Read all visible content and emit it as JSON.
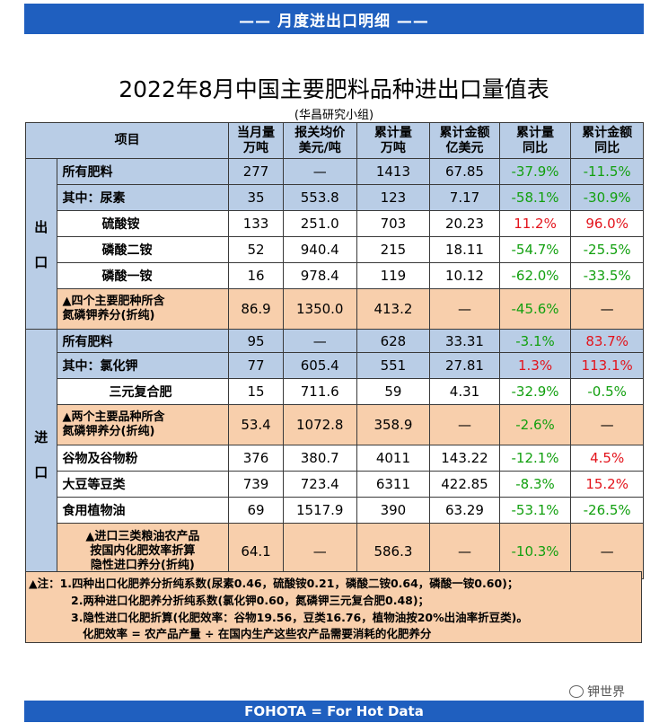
{
  "header": {
    "banner": "—— 月度进出口明细 ——"
  },
  "title": "2022年8月中国主要肥料品种进出口量值表",
  "subtitle": "(华昌研究小组)",
  "table": {
    "col_item": "项目",
    "columns": [
      [
        "当月量",
        "万吨"
      ],
      [
        "报关均价",
        "美元/吨"
      ],
      [
        "累计量",
        "万吨"
      ],
      [
        "累计金额",
        "亿美元"
      ],
      [
        "累计量",
        "同比"
      ],
      [
        "累计金额",
        "同比"
      ]
    ],
    "export_label": [
      "出",
      "口"
    ],
    "import_label": [
      "进",
      "口"
    ],
    "export_rows": [
      {
        "item": [
          "所有肥料"
        ],
        "vals": [
          "277",
          "—",
          "1413",
          "67.85",
          "-37.9%",
          "-11.5%"
        ]
      },
      {
        "item": [
          "其中：尿素"
        ],
        "vals": [
          "35",
          "553.8",
          "123",
          "7.17",
          "-58.1%",
          "-30.9%"
        ]
      },
      {
        "item": [
          "硫酸铵"
        ],
        "vals": [
          "133",
          "251.0",
          "703",
          "20.23",
          "11.2%",
          "96.0%"
        ]
      },
      {
        "item": [
          "磷酸二铵"
        ],
        "vals": [
          "52",
          "940.4",
          "215",
          "18.11",
          "-54.7%",
          "-25.5%"
        ]
      },
      {
        "item": [
          "磷酸一铵"
        ],
        "vals": [
          "16",
          "978.4",
          "119",
          "10.12",
          "-62.0%",
          "-33.5%"
        ]
      },
      {
        "item": [
          "▲四个主要肥种所含",
          "氮磷钾养分(折纯)"
        ],
        "vals": [
          "86.9",
          "1350.0",
          "413.2",
          "—",
          "-45.6%",
          "—"
        ]
      }
    ],
    "import_rows": [
      {
        "item": [
          "所有肥料"
        ],
        "vals": [
          "95",
          "—",
          "628",
          "33.31",
          "-3.1%",
          "83.7%"
        ]
      },
      {
        "item": [
          "其中：氯化钾"
        ],
        "vals": [
          "77",
          "605.4",
          "551",
          "27.81",
          "1.3%",
          "113.1%"
        ]
      },
      {
        "item": [
          "三元复合肥"
        ],
        "vals": [
          "15",
          "711.6",
          "59",
          "4.31",
          "-32.9%",
          "-0.5%"
        ]
      },
      {
        "item": [
          "▲两个主要品种所含",
          "氮磷钾养分(折纯)"
        ],
        "vals": [
          "53.4",
          "1072.8",
          "358.9",
          "—",
          "-2.6%",
          "—"
        ]
      },
      {
        "item": [
          "谷物及谷物粉"
        ],
        "vals": [
          "376",
          "380.7",
          "4011",
          "143.22",
          "-12.1%",
          "4.5%"
        ]
      },
      {
        "item": [
          "大豆等豆类"
        ],
        "vals": [
          "739",
          "723.4",
          "6311",
          "422.85",
          "-8.3%",
          "15.2%"
        ]
      },
      {
        "item": [
          "食用植物油"
        ],
        "vals": [
          "69",
          "1517.9",
          "390",
          "63.29",
          "-53.1%",
          "-26.5%"
        ]
      },
      {
        "item": [
          "▲进口三类粮油农产品",
          "按国内化肥效率折算",
          "隐性进口养分(折纯)"
        ],
        "vals": [
          "64.1",
          "—",
          "586.3",
          "—",
          "-10.3%",
          "—"
        ]
      }
    ]
  },
  "notes": {
    "l1": "▲注：1.四种出口化肥养分折纯系数(尿素0.46，硫酸铵0.21，磷酸二铵0.64，磷酸一铵0.60)；",
    "l2": "2.两种进口化肥养分折纯系数(氯化钾0.60，氮磷钾三元复合肥0.48)；",
    "l3": "3.隐性进口化肥折算(化肥效率：谷物19.56，豆类16.76，植物油按20%出油率折豆类)。",
    "l4": "化肥效率 = 农产品产量 ÷ 在国内生产这些农产品需要消耗的化肥养分"
  },
  "watermark": "钾世界",
  "footer": "FOHOTA = For Hot Data",
  "colors": {
    "banner": "#1f5fbf",
    "header_bg": "#b9cde6",
    "highlight_bg": "#f8cfac",
    "positive": "#e3131b",
    "negative": "#12a00f"
  }
}
